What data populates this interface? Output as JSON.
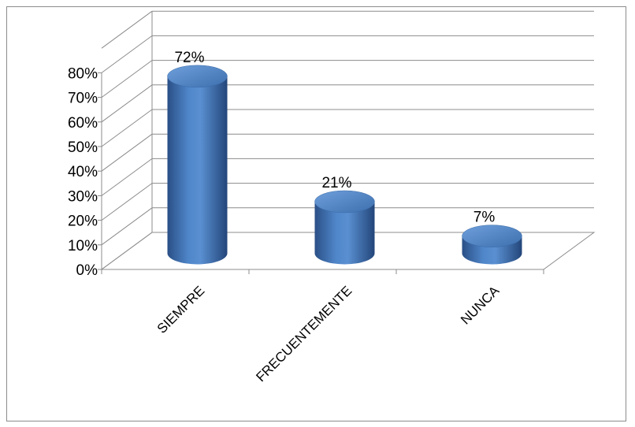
{
  "chart_data": {
    "type": "bar",
    "style": "3d-cylinder",
    "categories": [
      "SIEMPRE",
      "FRECUENTEMENTE",
      "NUNCA"
    ],
    "values": [
      72,
      21,
      7
    ],
    "data_labels": [
      "72%",
      "21%",
      "7%"
    ],
    "yticks": [
      "0%",
      "10%",
      "20%",
      "30%",
      "40%",
      "50%",
      "60%",
      "70%",
      "80%"
    ],
    "ylim": [
      0,
      80
    ],
    "grid": true,
    "legend": "none",
    "title": "",
    "xlabel": "",
    "ylabel": "",
    "bar_color": "#4a7ebb"
  }
}
